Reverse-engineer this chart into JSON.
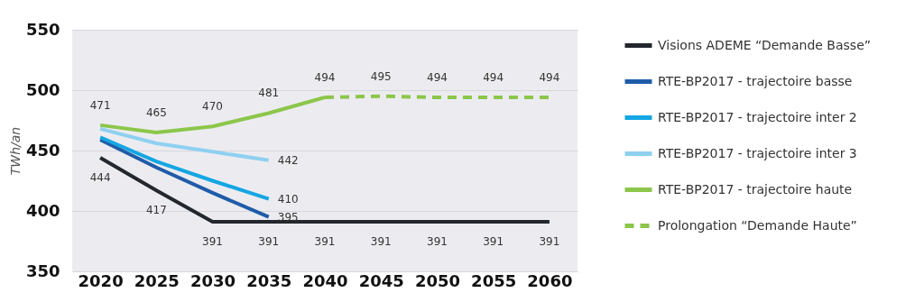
{
  "chart_data": {
    "type": "line",
    "ylabel": "TWh/an",
    "categories": [
      "2020",
      "2025",
      "2030",
      "2035",
      "2040",
      "2045",
      "2050",
      "2055",
      "2060"
    ],
    "ylim": [
      350,
      550
    ],
    "yticks": [
      350,
      400,
      450,
      500,
      550
    ],
    "grid": "y",
    "legend": "right",
    "line_style": "solid",
    "series": [
      {
        "name": "Visions ADEME “Demande Basse”",
        "color": "#23272e",
        "values": [
          444,
          417,
          391,
          391,
          391,
          391,
          391,
          391,
          391
        ],
        "value_labels": [
          "444",
          "417",
          "391",
          "391",
          "391",
          "391",
          "391",
          "391",
          "391"
        ]
      },
      {
        "name": "RTE-BP2017 - trajectoire basse",
        "color": "#1f5ca8",
        "values": [
          459,
          436,
          415,
          395,
          null,
          null,
          null,
          null,
          null
        ],
        "value_labels": [
          null,
          null,
          null,
          "395",
          null,
          null,
          null,
          null,
          null
        ]
      },
      {
        "name": "RTE-BP2017 - trajectoire inter 2",
        "color": "#14a6e3",
        "values": [
          461,
          441,
          425,
          410,
          null,
          null,
          null,
          null,
          null
        ],
        "value_labels": [
          null,
          null,
          null,
          "410",
          null,
          null,
          null,
          null,
          null
        ]
      },
      {
        "name": "RTE-BP2017 - trajectoire inter 3",
        "color": "#8fd0f0",
        "values": [
          468,
          456,
          449,
          442,
          null,
          null,
          null,
          null,
          null
        ],
        "value_labels": [
          null,
          null,
          null,
          "442",
          null,
          null,
          null,
          null,
          null
        ]
      },
      {
        "name": "RTE-BP2017 - trajectoire haute",
        "color": "#8cc64a",
        "values": [
          471,
          465,
          470,
          481,
          494,
          null,
          null,
          null,
          null
        ],
        "value_labels": [
          "471",
          "465",
          "470",
          "481",
          "494",
          null,
          null,
          null,
          null
        ]
      },
      {
        "name": "Prolongation “Demande Haute”",
        "color": "#8cc64a",
        "line_style": "dashed",
        "values": [
          null,
          null,
          null,
          null,
          494,
          495,
          494,
          494,
          494
        ],
        "value_labels": [
          null,
          null,
          null,
          null,
          null,
          "495",
          "494",
          "494",
          "494"
        ]
      }
    ]
  }
}
